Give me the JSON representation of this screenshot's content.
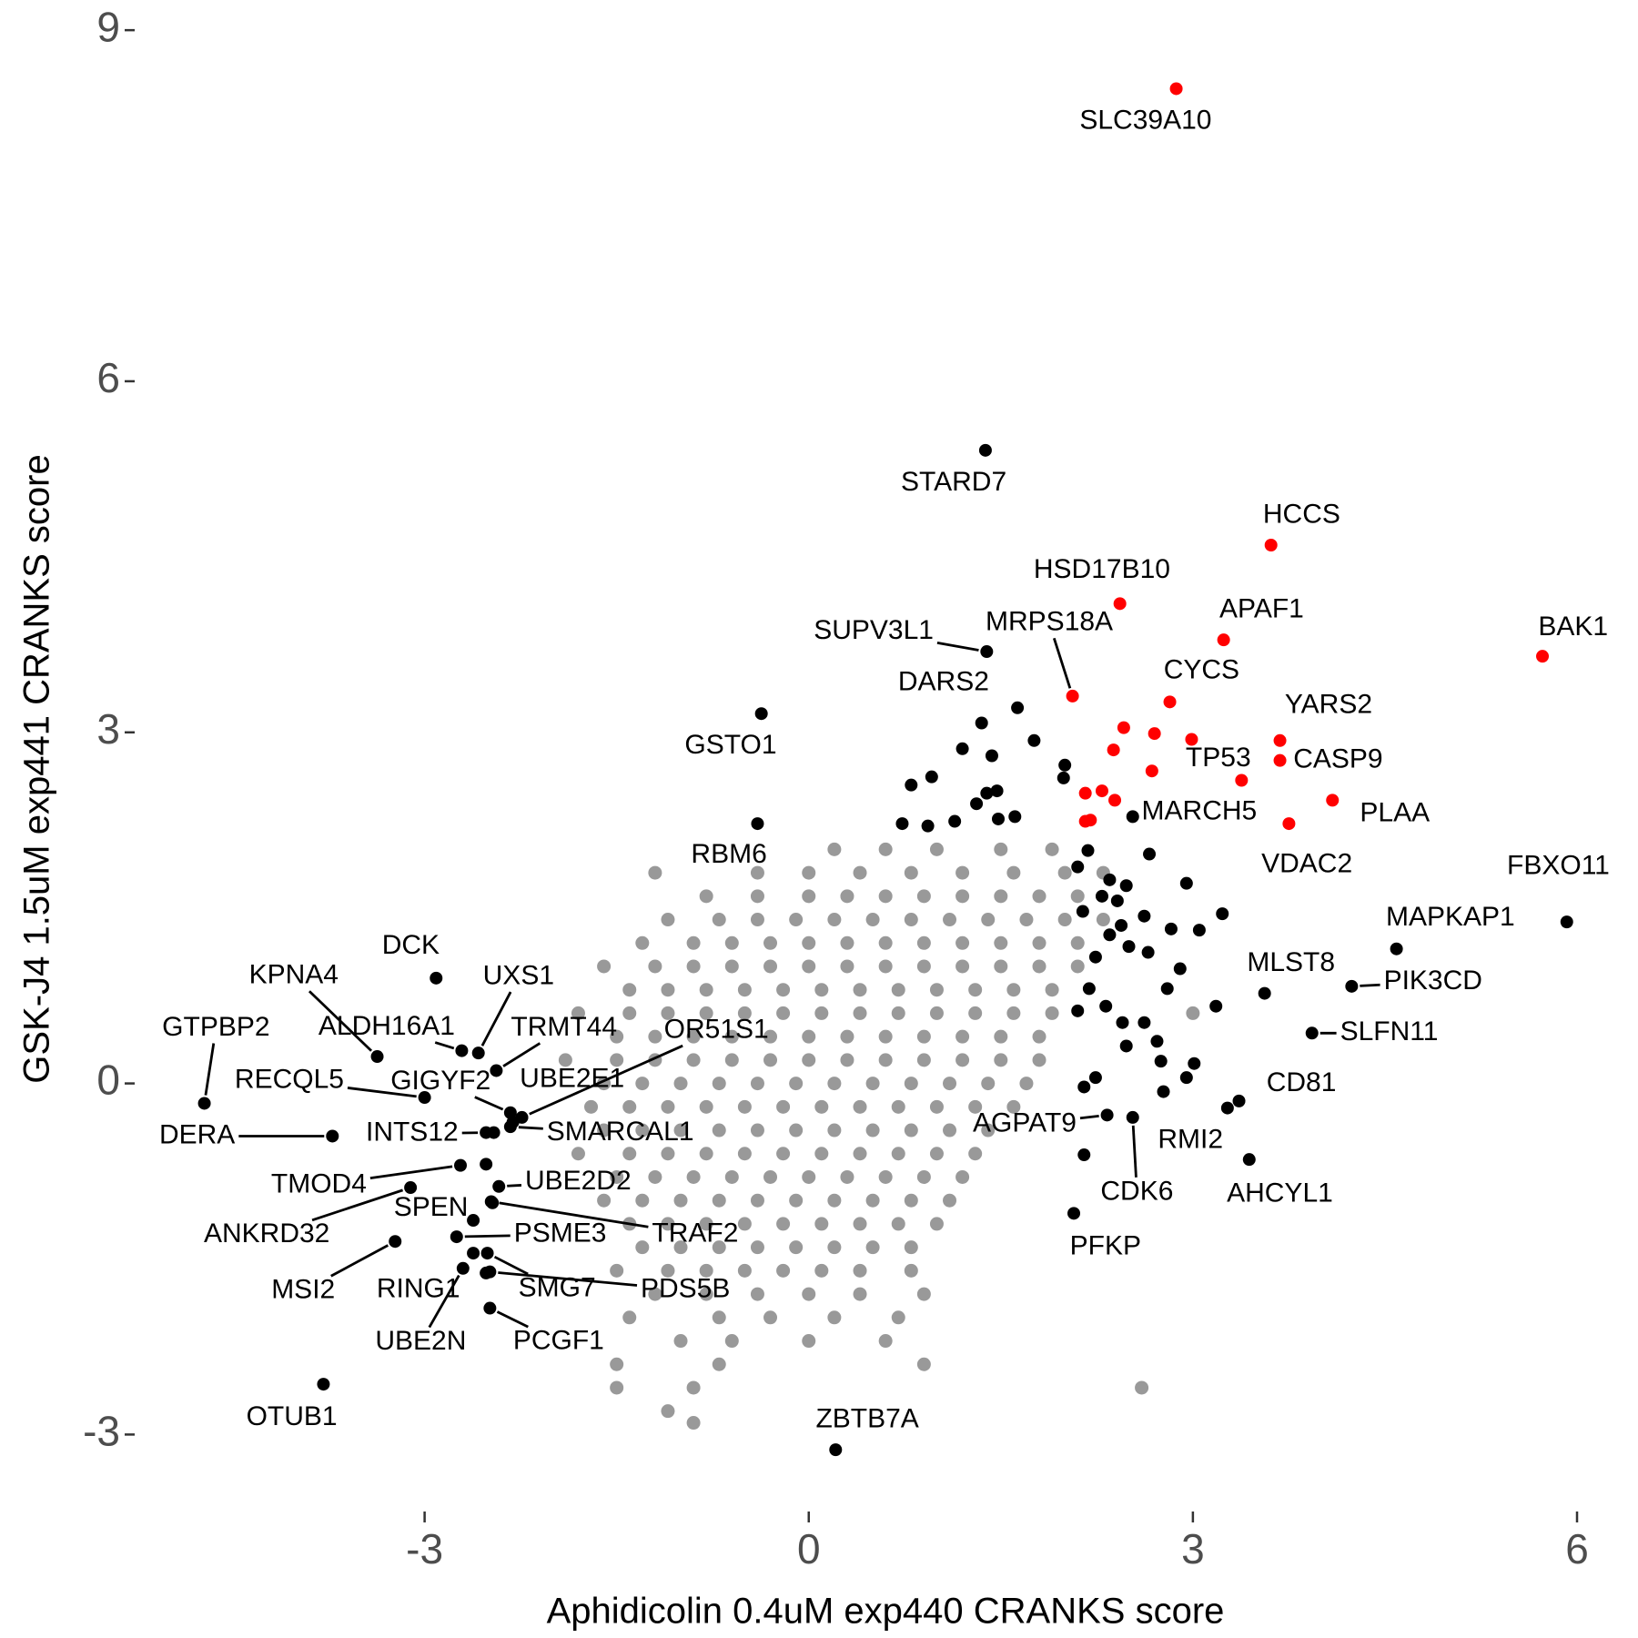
{
  "chart_data": {
    "type": "scatter",
    "x_label": "Aphidicolin 0.4uM exp440 CRANKS score",
    "y_label": "GSK-J4 1.5uM exp441 CRANKS score",
    "xlim": [
      -5.25,
      6.27
    ],
    "ylim": [
      -3.65,
      9.25
    ],
    "xticks": [
      -3,
      0,
      3,
      6
    ],
    "yticks": [
      -3,
      0,
      3,
      6,
      9
    ],
    "series": [
      {
        "color": "#999999",
        "x": [
          0.2,
          0.6,
          1.0,
          1.5,
          1.9,
          -1.2,
          -0.4,
          0.0,
          0.4,
          0.8,
          1.2,
          1.6,
          2.0,
          2.3,
          -0.8,
          -0.4,
          0.0,
          0.3,
          0.6,
          0.9,
          1.2,
          1.5,
          1.8,
          2.1,
          -1.1,
          -0.7,
          -0.4,
          -0.1,
          0.2,
          0.5,
          0.8,
          1.1,
          1.4,
          1.7,
          2.0,
          2.3,
          -1.3,
          -0.9,
          -0.6,
          -0.3,
          0.0,
          0.3,
          0.6,
          0.9,
          1.2,
          1.5,
          1.8,
          2.1,
          -1.6,
          -1.2,
          -0.9,
          -0.6,
          -0.3,
          0.0,
          0.3,
          0.6,
          0.9,
          1.2,
          1.5,
          1.8,
          2.1,
          -1.4,
          -1.1,
          -0.8,
          -0.5,
          -0.2,
          0.1,
          0.4,
          0.7,
          1.0,
          1.3,
          1.6,
          1.9,
          -1.8,
          -1.4,
          -1.1,
          -0.8,
          -0.5,
          -0.2,
          0.1,
          0.4,
          0.7,
          1.0,
          1.3,
          1.6,
          1.9,
          -1.5,
          -1.2,
          -0.9,
          -0.6,
          -0.3,
          0.0,
          0.3,
          0.6,
          0.9,
          1.2,
          1.5,
          1.8,
          -1.9,
          -1.5,
          -1.2,
          -0.9,
          -0.6,
          -0.3,
          0.0,
          0.3,
          0.6,
          0.9,
          1.2,
          1.5,
          1.8,
          -1.6,
          -1.3,
          -1.0,
          -0.7,
          -0.4,
          -0.1,
          0.2,
          0.5,
          0.8,
          1.1,
          1.4,
          1.7,
          -1.7,
          -1.4,
          -1.1,
          -0.8,
          -0.5,
          -0.2,
          0.1,
          0.4,
          0.7,
          1.0,
          1.3,
          1.6,
          -1.6,
          -1.3,
          -1.0,
          -0.7,
          -0.4,
          -0.1,
          0.2,
          0.5,
          0.8,
          1.1,
          1.4,
          -1.8,
          -1.4,
          -1.1,
          -0.8,
          -0.5,
          -0.2,
          0.1,
          0.4,
          0.7,
          1.0,
          1.3,
          -1.5,
          -1.2,
          -0.9,
          -0.6,
          -0.3,
          0.0,
          0.3,
          0.6,
          0.9,
          1.2,
          -1.6,
          -1.3,
          -1.0,
          -0.7,
          -0.4,
          -0.1,
          0.2,
          0.5,
          0.8,
          1.1,
          -1.4,
          -1.1,
          -0.8,
          -0.5,
          -0.2,
          0.1,
          0.4,
          0.7,
          1.0,
          -1.3,
          -1.0,
          -0.7,
          -0.4,
          -0.1,
          0.2,
          0.5,
          0.8,
          -1.5,
          -1.1,
          -0.8,
          -0.5,
          -0.2,
          0.1,
          0.4,
          0.8,
          -1.2,
          -0.8,
          -0.4,
          0.0,
          0.4,
          0.9,
          -1.4,
          -0.7,
          -0.3,
          0.2,
          0.7,
          -1.0,
          -0.6,
          0.0,
          0.6,
          -1.5,
          -0.7,
          0.9,
          -1.5,
          -0.9,
          -1.1,
          -0.9,
          2.6,
          3.0
        ],
        "values": [
          2.0,
          2.0,
          2.0,
          2.0,
          2.0,
          1.8,
          1.8,
          1.8,
          1.8,
          1.8,
          1.8,
          1.8,
          1.8,
          1.8,
          1.6,
          1.6,
          1.6,
          1.6,
          1.6,
          1.6,
          1.6,
          1.6,
          1.6,
          1.6,
          1.4,
          1.4,
          1.4,
          1.4,
          1.4,
          1.4,
          1.4,
          1.4,
          1.4,
          1.4,
          1.4,
          1.4,
          1.2,
          1.2,
          1.2,
          1.2,
          1.2,
          1.2,
          1.2,
          1.2,
          1.2,
          1.2,
          1.2,
          1.2,
          1.0,
          1.0,
          1.0,
          1.0,
          1.0,
          1.0,
          1.0,
          1.0,
          1.0,
          1.0,
          1.0,
          1.0,
          1.0,
          0.8,
          0.8,
          0.8,
          0.8,
          0.8,
          0.8,
          0.8,
          0.8,
          0.8,
          0.8,
          0.8,
          0.8,
          0.6,
          0.6,
          0.6,
          0.6,
          0.6,
          0.6,
          0.6,
          0.6,
          0.6,
          0.6,
          0.6,
          0.6,
          0.6,
          0.4,
          0.4,
          0.4,
          0.4,
          0.4,
          0.4,
          0.4,
          0.4,
          0.4,
          0.4,
          0.4,
          0.4,
          0.2,
          0.2,
          0.2,
          0.2,
          0.2,
          0.2,
          0.2,
          0.2,
          0.2,
          0.2,
          0.2,
          0.2,
          0.2,
          0.0,
          0.0,
          0.0,
          0.0,
          0.0,
          0.0,
          0.0,
          0.0,
          0.0,
          0.0,
          0.0,
          0.0,
          -0.2,
          -0.2,
          -0.2,
          -0.2,
          -0.2,
          -0.2,
          -0.2,
          -0.2,
          -0.2,
          -0.2,
          -0.2,
          -0.2,
          -0.4,
          -0.4,
          -0.4,
          -0.4,
          -0.4,
          -0.4,
          -0.4,
          -0.4,
          -0.4,
          -0.4,
          -0.4,
          -0.6,
          -0.6,
          -0.6,
          -0.6,
          -0.6,
          -0.6,
          -0.6,
          -0.6,
          -0.6,
          -0.6,
          -0.6,
          -0.8,
          -0.8,
          -0.8,
          -0.8,
          -0.8,
          -0.8,
          -0.8,
          -0.8,
          -0.8,
          -0.8,
          -1.0,
          -1.0,
          -1.0,
          -1.0,
          -1.0,
          -1.0,
          -1.0,
          -1.0,
          -1.0,
          -1.0,
          -1.2,
          -1.2,
          -1.2,
          -1.2,
          -1.2,
          -1.2,
          -1.2,
          -1.2,
          -1.2,
          -1.4,
          -1.4,
          -1.4,
          -1.4,
          -1.4,
          -1.4,
          -1.4,
          -1.4,
          -1.6,
          -1.6,
          -1.6,
          -1.6,
          -1.6,
          -1.6,
          -1.6,
          -1.6,
          -1.8,
          -1.8,
          -1.8,
          -1.8,
          -1.8,
          -1.8,
          -2.0,
          -2.0,
          -2.0,
          -2.0,
          -2.0,
          -2.2,
          -2.2,
          -2.2,
          -2.2,
          -2.4,
          -2.4,
          -2.4,
          -2.6,
          -2.6,
          -2.8,
          -2.9,
          -2.6,
          0.6
        ]
      },
      {
        "color": "#000000",
        "x": [
          1.38,
          1.39,
          1.35,
          -0.37,
          -0.4,
          2.53,
          5.92,
          4.59,
          3.56,
          4.24,
          3.93,
          3.36,
          3.27,
          3.44,
          2.33,
          2.53,
          2.07,
          0.21,
          -3.79,
          -2.91,
          -3.37,
          -2.71,
          -2.58,
          -2.44,
          -4.72,
          -3.0,
          -2.33,
          -2.31,
          -2.24,
          -2.33,
          -3.72,
          -2.52,
          -2.72,
          -2.42,
          -2.62,
          -3.11,
          -2.48,
          -2.75,
          -3.23,
          -2.62,
          -2.7,
          -2.51,
          -2.49,
          -2.49,
          0.8,
          0.96,
          1.2,
          1.43,
          1.63,
          1.76,
          2.0,
          1.99,
          1.39,
          1.47,
          0.73,
          0.93,
          1.14,
          1.31,
          1.48,
          1.61,
          2.18,
          2.1,
          2.35,
          2.48,
          2.29,
          2.41,
          2.14,
          2.44,
          2.62,
          2.35,
          2.83,
          3.05,
          3.23,
          2.95,
          2.66,
          2.24,
          2.5,
          2.65,
          2.9,
          2.8,
          3.18,
          2.19,
          2.1,
          2.32,
          2.45,
          2.62,
          2.72,
          2.48,
          2.75,
          3.01,
          2.24,
          2.77,
          2.95,
          2.15,
          2.15,
          -2.46,
          -2.52,
          -2.47,
          -2.52
        ],
        "values": [
          5.41,
          3.69,
          3.08,
          3.16,
          2.22,
          2.28,
          1.38,
          1.15,
          0.77,
          0.83,
          0.43,
          -0.15,
          -0.21,
          -0.65,
          -0.27,
          -0.29,
          -1.11,
          -3.13,
          -2.57,
          0.9,
          0.23,
          0.28,
          0.26,
          0.11,
          -0.17,
          -0.12,
          -0.25,
          -0.33,
          -0.29,
          -0.37,
          -0.45,
          -0.42,
          -0.7,
          -0.88,
          -1.17,
          -0.89,
          -1.01,
          -1.31,
          -1.35,
          -1.45,
          -1.58,
          -1.45,
          -1.61,
          -1.92,
          2.55,
          2.62,
          2.86,
          2.8,
          3.21,
          2.93,
          2.72,
          2.61,
          2.48,
          2.5,
          2.22,
          2.2,
          2.24,
          2.39,
          2.26,
          2.28,
          1.99,
          1.85,
          1.74,
          1.69,
          1.6,
          1.56,
          1.47,
          1.35,
          1.43,
          1.27,
          1.32,
          1.31,
          1.45,
          1.71,
          1.96,
          1.08,
          1.17,
          1.12,
          0.98,
          0.81,
          0.66,
          0.81,
          0.62,
          0.66,
          0.52,
          0.52,
          0.36,
          0.32,
          0.19,
          0.17,
          0.05,
          -0.07,
          0.05,
          -0.61,
          -0.03,
          -0.42,
          -0.69,
          -1.02,
          -1.62
        ],
        "labels": [
          "STARD7",
          "SUPV3L1",
          "DARS2",
          "GSTO1",
          "RBM6",
          "MARCH5",
          "FBXO11",
          "MAPKAP1",
          "MLST8",
          "PIK3CD",
          "SLFN11",
          "CD81",
          "RMI2",
          "AHCYL1",
          "AGPAT9",
          "CDK6",
          "PFKP",
          "ZBTB7A",
          "OTUB1",
          "DCK",
          "KPNA4",
          "ALDH16A1",
          "UXS1",
          "TRMT44",
          "GTPBP2",
          "RECQL5",
          "GIGYF2",
          "UBE2E1",
          "OR51S1",
          "SMARCAL1",
          "DERA",
          "INTS12",
          "TMOD4",
          "UBE2D2",
          "SPEN",
          "ANKRD32",
          "TRAF2",
          "PSME3",
          "MSI2",
          "RING1",
          "UBE2N",
          "SMG7",
          "PDS5B",
          "PCGF1",
          null,
          null,
          null,
          null,
          null,
          null,
          null,
          null,
          null,
          null,
          null,
          null,
          null,
          null,
          null,
          null,
          null,
          null,
          null,
          null,
          null,
          null,
          null,
          null,
          null,
          null,
          null,
          null,
          null,
          null,
          null,
          null,
          null,
          null,
          null,
          null,
          null,
          null,
          null,
          null,
          null,
          null,
          null,
          null,
          null,
          null,
          null,
          null,
          null,
          null,
          null,
          null,
          null,
          null,
          null
        ]
      },
      {
        "color": "#ff0000",
        "x": [
          2.87,
          3.61,
          2.43,
          3.24,
          5.73,
          2.06,
          2.82,
          3.68,
          3.38,
          3.68,
          4.09,
          3.75,
          2.46,
          2.7,
          2.99,
          2.38,
          2.68,
          2.16,
          2.29,
          2.39,
          2.16,
          2.2
        ],
        "values": [
          8.5,
          4.6,
          4.1,
          3.79,
          3.65,
          3.31,
          3.26,
          2.93,
          2.59,
          2.76,
          2.42,
          2.22,
          3.04,
          2.99,
          2.94,
          2.85,
          2.67,
          2.48,
          2.5,
          2.42,
          2.24,
          2.25
        ],
        "labels": [
          "SLC39A10",
          "HCCS",
          "HSD17B10",
          "APAF1",
          "BAK1",
          "MRPS18A",
          "CYCS",
          "YARS2",
          "TP53",
          "CASP9",
          "PLAA",
          "VDAC2",
          null,
          null,
          null,
          null,
          null,
          null,
          null,
          null,
          null,
          null
        ]
      }
    ]
  }
}
